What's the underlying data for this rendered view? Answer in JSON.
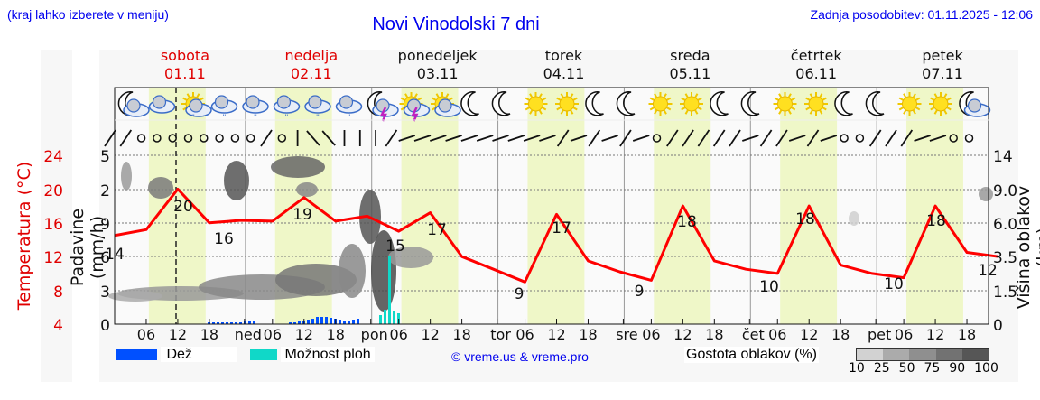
{
  "header": {
    "hint": "(kraj lahko izberete v meniju)",
    "title": "Novi Vinodolski 7 dni",
    "updated": "Zadnja posodobitev: 01.11.2025 - 12:06"
  },
  "days": [
    {
      "name": "sobota",
      "date": "01.11",
      "weekend": true
    },
    {
      "name": "nedelja",
      "date": "02.11",
      "weekend": true
    },
    {
      "name": "ponedeljek",
      "date": "03.11",
      "weekend": false
    },
    {
      "name": "torek",
      "date": "04.11",
      "weekend": false
    },
    {
      "name": "sreda",
      "date": "05.11",
      "weekend": false
    },
    {
      "name": "četrtek",
      "date": "06.11",
      "weekend": false
    },
    {
      "name": "petek",
      "date": "07.11",
      "weekend": false
    }
  ],
  "axes": {
    "temp_label": "Temperatura (°C)",
    "temp_ticks": [
      "24",
      "20",
      "16",
      "12",
      "8",
      "4"
    ],
    "precip_label": "Padavine (mm/h)",
    "precip_ticks": [
      "5",
      "2",
      "9",
      "6",
      "3",
      "0"
    ],
    "cloud_label": "Višina oblakov (km)",
    "cloud_ticks": [
      "14",
      "9.0",
      "6.0",
      "3.5",
      "1.5",
      "0"
    ],
    "x_ticks": [
      "06",
      "12",
      "18",
      "ned",
      "06",
      "12",
      "18",
      "pon",
      "06",
      "12",
      "18",
      "tor",
      "06",
      "12",
      "18",
      "sre",
      "06",
      "12",
      "18",
      "čet",
      "06",
      "12",
      "18",
      "pet",
      "06",
      "12",
      "18"
    ]
  },
  "icons": [
    "moon-cloud",
    "cloud",
    "sun-cloud-rain",
    "cloud-rain",
    "cloud-rain",
    "cloud-rain",
    "cloud-rain",
    "cloud-rain",
    "moon-storm",
    "sun-storm",
    "sun-cloud",
    "moon",
    "moon",
    "sun",
    "sun",
    "moon",
    "moon",
    "sun",
    "sun",
    "moon",
    "moon",
    "sun",
    "sun",
    "moon",
    "moon",
    "sun",
    "sun",
    "moon-cloud"
  ],
  "legend": {
    "rain_label": "Dež",
    "showers_label": "Možnost ploh",
    "copyright": "© vreme.us & vreme.pro",
    "cloud_density_label": "Gostota oblakov (%)",
    "cloud_density_ticks": [
      "10",
      "25",
      "50",
      "75",
      "90",
      "100"
    ],
    "rain_color": "#0050ff",
    "showers_color": "#10d8c8"
  },
  "chart_data": {
    "type": "line",
    "title": "Novi Vinodolski 7 dni",
    "xlabel": "",
    "ylabel": "Temperatura (°C)",
    "ylim": [
      4,
      24
    ],
    "y2label": "Padavine (mm/h)",
    "y3label": "Višina oblakov (km)",
    "x": [
      "01.11 00",
      "01.11 06",
      "01.11 12",
      "01.11 18",
      "02.11 00",
      "02.11 06",
      "02.11 12",
      "02.11 18",
      "03.11 00",
      "03.11 06",
      "03.11 12",
      "03.11 18",
      "04.11 00",
      "04.11 06",
      "04.11 12",
      "04.11 18",
      "05.11 00",
      "05.11 06",
      "05.11 12",
      "05.11 18",
      "06.11 00",
      "06.11 06",
      "06.11 12",
      "06.11 18",
      "07.11 00",
      "07.11 06",
      "07.11 12",
      "07.11 18",
      "08.11 00"
    ],
    "series": [
      {
        "name": "Temperatura",
        "color": "#ff0000",
        "values": [
          14.5,
          15.2,
          20,
          16,
          16.3,
          16.2,
          19,
          16.2,
          16.8,
          15,
          17.2,
          12,
          10.5,
          9,
          17,
          11.5,
          10.2,
          9.2,
          18,
          11.5,
          10.5,
          10,
          18,
          11,
          10,
          9.5,
          18,
          12.5,
          12
        ]
      }
    ],
    "annotations": [
      {
        "x": "01.11 00",
        "label": "14"
      },
      {
        "x": "01.11 12",
        "label": "20"
      },
      {
        "x": "01.11 18",
        "label": "16"
      },
      {
        "x": "02.11 12",
        "label": "19"
      },
      {
        "x": "03.11 06",
        "label": "15"
      },
      {
        "x": "03.11 15",
        "label": "17"
      },
      {
        "x": "04.11 06",
        "label": "9"
      },
      {
        "x": "04.11 12",
        "label": "17"
      },
      {
        "x": "05.11 06",
        "label": "9"
      },
      {
        "x": "05.11 15",
        "label": "18"
      },
      {
        "x": "06.11 06",
        "label": "10"
      },
      {
        "x": "06.11 12",
        "label": "18"
      },
      {
        "x": "07.11 06",
        "label": "10"
      },
      {
        "x": "07.11 12",
        "label": "18"
      },
      {
        "x": "07.11 24",
        "label": "12"
      }
    ],
    "rain_bars": "small blue bars on 01.11 evening and 02.11 afternoon/evening; teal shower bars on 03.11 early morning",
    "grid": true,
    "legend_position": "bottom"
  }
}
